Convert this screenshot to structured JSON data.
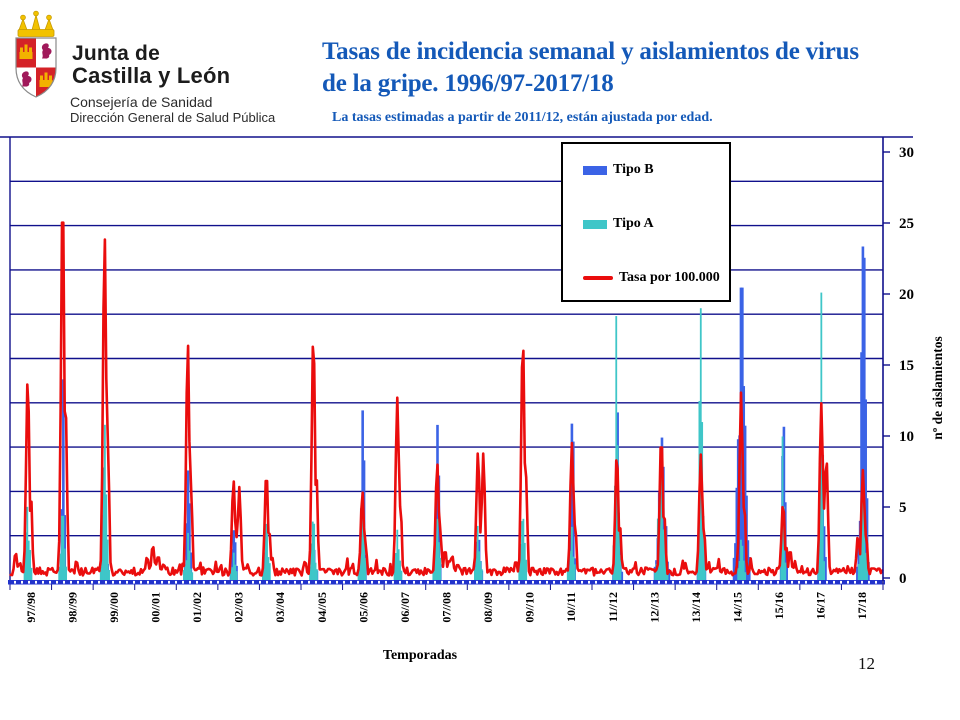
{
  "page_number": "12",
  "logo": {
    "line1": "Junta de",
    "line2": "Castilla y León",
    "dept1": "Consejería de Sanidad",
    "dept2": "Dirección General de Salud Pública"
  },
  "header": {
    "title_line1": "Tasas de incidencia semanal y aislamientos de virus",
    "title_line2": "de la gripe. 1996/97-2017/18",
    "subtitle": "La tasas estimadas a partir  de 2011/12, están ajustada  por  edad."
  },
  "chart_data": {
    "type": "line+bar",
    "title": "Tasas de incidencia semanal y aislamientos de virus de la gripe. 1996/97-2017/18",
    "x_axis_label": "Temporadas",
    "y_axis_right_label": "nº de aislamientos",
    "y_right_ticks": [
      0,
      5,
      10,
      15,
      20,
      25,
      30
    ],
    "y_right_range": [
      0,
      31
    ],
    "grid_divisions": 10,
    "x_unit": "semanas (series semanal continua por temporada)",
    "legend": [
      {
        "label": "Tipo B",
        "color": "#3b63e6",
        "type": "bar"
      },
      {
        "label": "Tipo A",
        "color": "#3fc6c8",
        "type": "bar"
      },
      {
        "label": "Tasa por 100.000",
        "color": "#ea0d0d",
        "type": "line"
      }
    ],
    "colors": {
      "tipo_b": "#3b63e6",
      "tipo_a": "#3fc6c8",
      "rate_line": "#ea0d0d",
      "grid": "#10108c",
      "baseline": "#2233cc",
      "title_blue": "#1459b8"
    },
    "seasons": [
      {
        "label": "97//98",
        "rate_peak": 14.1,
        "peak_pos": 0.41,
        "tipo_a_peak": 5.1,
        "tipo_b_peak": 1.2,
        "bumps": [
          {
            "pos": 0.12,
            "h": 1.8
          },
          {
            "pos": 0.22,
            "h": 1.1
          }
        ]
      },
      {
        "label": "98//99",
        "rate_peak": 27.5,
        "peak_pos": 0.25,
        "tipo_a_peak": 4.6,
        "tipo_b_peak": 14.1,
        "spread_b": 0.8
      },
      {
        "label": "99//00",
        "rate_peak": 24.2,
        "peak_pos": 0.26,
        "tipo_a_peak": 10.9,
        "tipo_b_peak": 2.5,
        "spread_a": 1.4
      },
      {
        "label": "00//01",
        "rate_peak": 2.3,
        "peak_pos": 0.42,
        "tipo_a_peak": 0.4,
        "tipo_b_peak": 0.3,
        "bumps": [
          {
            "pos": 0.28,
            "h": 1.5
          },
          {
            "pos": 0.55,
            "h": 1.6
          },
          {
            "pos": 0.68,
            "h": 1.0
          }
        ]
      },
      {
        "label": "01//02",
        "rate_peak": 16.6,
        "peak_pos": 0.26,
        "tipo_a_peak": 3.2,
        "tipo_b_peak": 7.7,
        "spread_b": 1.1
      },
      {
        "label": "02//03",
        "rate_peak": 6.9,
        "peak_pos": 0.36,
        "tipo_a_peak": 1.8,
        "tipo_b_peak": 3.4,
        "bumps": [
          {
            "pos": 0.5,
            "h": 6.4
          }
        ]
      },
      {
        "label": "03//04",
        "rate_peak": 7.5,
        "peak_pos": 0.15,
        "tipo_a_peak": 4.0,
        "tipo_b_peak": 0.6
      },
      {
        "label": "04//05",
        "rate_peak": 17.3,
        "peak_pos": 0.28,
        "tipo_a_peak": 4.1,
        "tipo_b_peak": 2.0,
        "bumps": [
          {
            "pos": 0.08,
            "h": 1.2
          }
        ]
      },
      {
        "label": "05//06",
        "rate_peak": 6.1,
        "peak_pos": 0.46,
        "tipo_a_peak": 4.2,
        "tipo_b_peak": 12.0,
        "spread_b": 1.1
      },
      {
        "label": "06//07",
        "rate_peak": 12.7,
        "peak_pos": 0.3,
        "tipo_a_peak": 3.4,
        "tipo_b_peak": 1.0
      },
      {
        "label": "07//08",
        "rate_peak": 8.1,
        "peak_pos": 0.26,
        "tipo_a_peak": 4.2,
        "tipo_b_peak": 11.0,
        "spread_b": 1.0,
        "bumps": [
          {
            "pos": 0.45,
            "h": 2.0
          },
          {
            "pos": 0.55,
            "h": 1.3
          },
          {
            "pos": 0.62,
            "h": 1.6
          },
          {
            "pos": 0.75,
            "h": 1.0
          }
        ]
      },
      {
        "label": "08//09",
        "rate_peak": 8.9,
        "peak_pos": 0.24,
        "tipo_a_peak": 3.7,
        "tipo_b_peak": 2.8,
        "bumps": [
          {
            "pos": 0.37,
            "h": 8.8
          }
        ]
      },
      {
        "label": "09//10",
        "rate_peak": 17.0,
        "peak_pos": 0.32,
        "tipo_a_peak": 4.3,
        "tipo_b_peak": 0.6,
        "bumps": [
          {
            "pos": 0.15,
            "h": 1.2
          }
        ]
      },
      {
        "label": "10//11",
        "rate_peak": 9.5,
        "peak_pos": 0.5,
        "tipo_a_peak": 3.6,
        "tipo_b_peak": 12.0,
        "spread_b": 0.9
      },
      {
        "label": "11//12",
        "rate_peak": 8.8,
        "peak_pos": 0.58,
        "tipo_a_peak": 19.5,
        "tipo_b_peak": 11.8,
        "spread_a": 1.2,
        "spread_b": 1.3
      },
      {
        "label": "12//13",
        "rate_peak": 10.1,
        "peak_pos": 0.65,
        "tipo_a_peak": 8.5,
        "tipo_b_peak": 9.9,
        "spread_a": 2.2,
        "spread_b": 2.2
      },
      {
        "label": "13//14",
        "rate_peak": 8.7,
        "peak_pos": 0.6,
        "tipo_a_peak": 19.0,
        "tipo_b_peak": 5.2,
        "spread_a": 1.2
      },
      {
        "label": "14//15",
        "rate_peak": 13.1,
        "peak_pos": 0.57,
        "tipo_a_peak": 2.7,
        "tipo_b_peak": 20.9,
        "spread_b": 2.4
      },
      {
        "label": "15/16",
        "rate_peak": 5.3,
        "peak_pos": 0.58,
        "tipo_a_peak": 11.0,
        "tipo_b_peak": 10.8,
        "spread_a": 0.9,
        "spread_b": 1.2,
        "bumps": [
          {
            "pos": 0.75,
            "h": 2.0
          }
        ]
      },
      {
        "label": "16/17",
        "rate_peak": 12.3,
        "peak_pos": 0.5,
        "tipo_a_peak": 20.1,
        "tipo_b_peak": 9.5,
        "spread_a": 0.9,
        "bumps": [
          {
            "pos": 0.62,
            "h": 8.6
          }
        ]
      },
      {
        "label": "17/18",
        "rate_peak": 7.6,
        "peak_pos": 0.5,
        "tipo_a_peak": 7.4,
        "tipo_b_peak": 24.0,
        "spread_b": 1.7,
        "bumps": [
          {
            "pos": 0.38,
            "h": 3.0
          }
        ]
      }
    ]
  }
}
